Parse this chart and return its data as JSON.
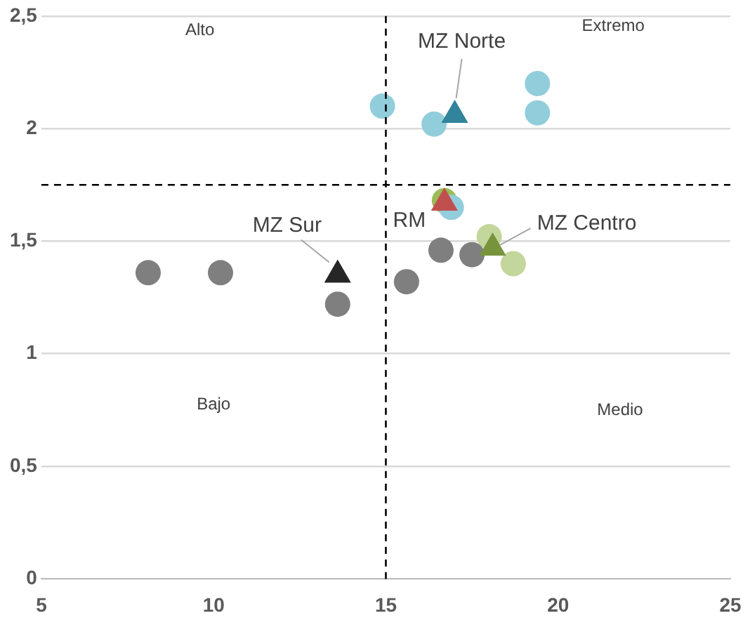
{
  "chart_data": {
    "type": "scatter",
    "xlim": [
      5,
      25
    ],
    "xticks": [
      5,
      10,
      15,
      20,
      25
    ],
    "ylim": [
      0,
      2.5
    ],
    "yticks": [
      0,
      {
        "value": 0.5,
        "label": "0,5"
      },
      1,
      {
        "value": 1.5,
        "label": "1,5"
      },
      2,
      {
        "value": 2.5,
        "label": "2,5"
      }
    ],
    "grid": "y",
    "legend": false,
    "series": [
      {
        "color": "#7f7f7f",
        "marker": "circle",
        "x": [
          8.1,
          10.2,
          13.6,
          15.6,
          16.6,
          17.5
        ],
        "values": [
          1.36,
          1.36,
          1.22,
          1.32,
          1.46,
          1.44
        ]
      },
      {
        "color": "#92cddc",
        "marker": "circle",
        "x": [
          14.9,
          16.4,
          19.4,
          19.4,
          16.9
        ],
        "values": [
          2.1,
          2.02,
          2.2,
          2.07,
          1.65
        ]
      },
      {
        "color": "#c3d69b",
        "marker": "circle",
        "x": [
          18.0,
          18.7
        ],
        "values": [
          1.52,
          1.4
        ]
      },
      {
        "color": "#9bbb59",
        "marker": "circle",
        "x": [
          16.7
        ],
        "values": [
          1.68
        ]
      },
      {
        "color": "#31849b",
        "marker": "triangle",
        "x": [
          17.0
        ],
        "values": [
          2.06
        ]
      },
      {
        "color": "#c0504d",
        "marker": "triangle",
        "x": [
          16.7
        ],
        "values": [
          1.67
        ]
      },
      {
        "color": "#77933c",
        "marker": "triangle",
        "x": [
          18.1
        ],
        "values": [
          1.47
        ]
      },
      {
        "color": "#262626",
        "marker": "triangle",
        "x": [
          13.6
        ],
        "values": [
          1.35
        ]
      }
    ],
    "ref_lines": [
      {
        "axis": "x",
        "value": 15,
        "line_style": "dashed",
        "color": "#000000"
      },
      {
        "axis": "y",
        "value": 1.75,
        "line_style": "dashed",
        "color": "#000000"
      }
    ],
    "annotations": [
      {
        "text": "MZ Norte",
        "x": 17.0,
        "y": 2.06
      },
      {
        "text": "RM",
        "x": 16.7,
        "y": 1.67
      },
      {
        "text": "MZ Centro",
        "x": 18.1,
        "y": 1.47
      },
      {
        "text": "MZ Sur",
        "x": 13.6,
        "y": 1.35
      },
      "Alto",
      "Extremo",
      "Bajo",
      "Medio"
    ]
  }
}
